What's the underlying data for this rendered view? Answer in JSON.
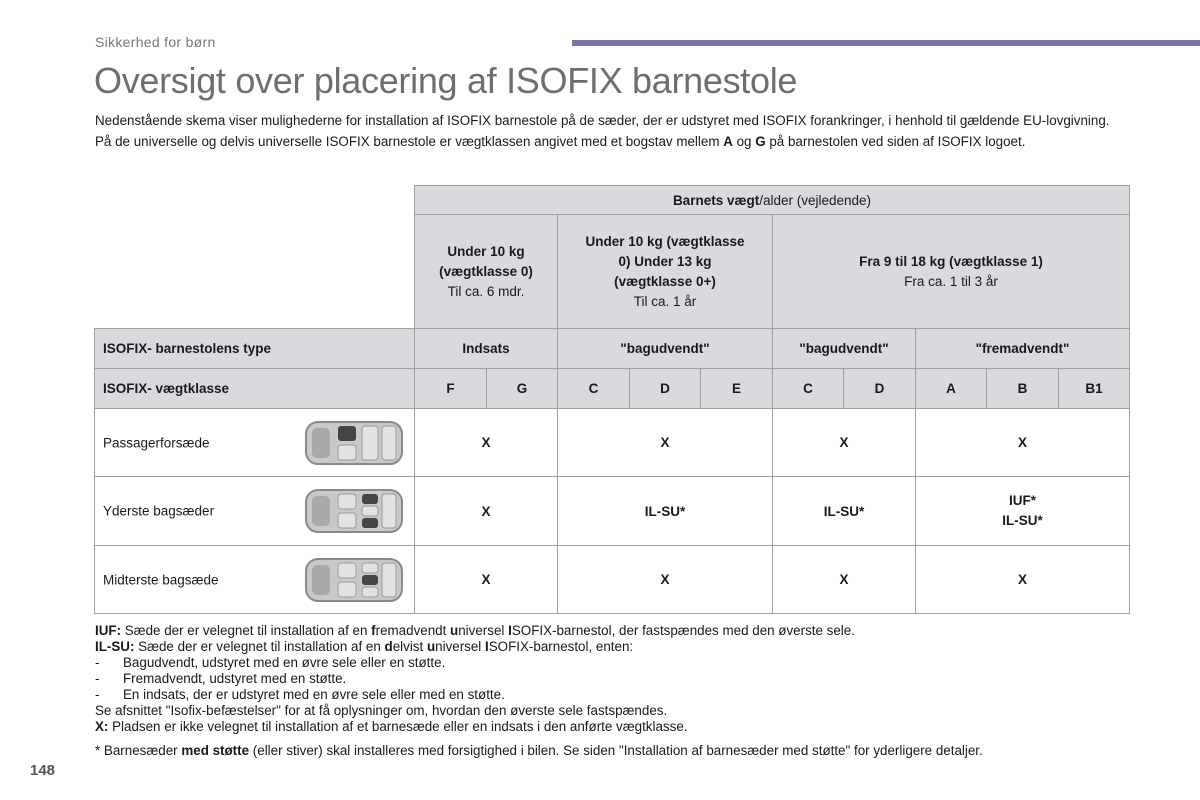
{
  "header": {
    "section": "Sikkerhed for børn",
    "title": "Oversigt over placering af ISOFIX barnestole",
    "accent_color": "#7c72a6"
  },
  "intro": {
    "line1": "Nedenstående skema viser mulighederne for installation af ISOFIX barnestole på de sæder, der er udstyret med ISOFIX forankringer, i henhold til gældende EU-lovgivning.",
    "line2_a": "På de universelle og delvis universelle ISOFIX barnestole er vægtklassen angivet med et bogstav mellem ",
    "line2_b": "A",
    "line2_c": " og ",
    "line2_d": "G",
    "line2_e": " på barnestolen ved siden af ISOFIX logoet."
  },
  "table": {
    "head_bold": "Barnets vægt",
    "head_rest": "/alder (vejledende)",
    "groups": [
      {
        "bold": "Under 10 kg (vægtklasse 0)",
        "sub": "Til ca. 6 mdr."
      },
      {
        "bold": "Under 10 kg (vægtklasse 0) Under 13 kg (vægtklasse 0+)",
        "sub": "Til ca. 1 år"
      },
      {
        "bold": "Fra 9 til 18 kg (vægtklasse 1)",
        "sub": "Fra ca. 1 til 3 år"
      }
    ],
    "type_label": "ISOFIX- barnestolens type",
    "types": [
      "Indsats",
      "\"bagudvendt\"",
      "\"bagudvendt\"",
      "\"fremadvendt\""
    ],
    "class_label": "ISOFIX- vægtklasse",
    "classes": [
      "F",
      "G",
      "C",
      "D",
      "E",
      "C",
      "D",
      "A",
      "B",
      "B1"
    ],
    "rows": [
      {
        "seat": "Passagerforsæde",
        "icon": "car-front-seat-icon",
        "values": [
          "X",
          "X",
          "X",
          "X"
        ]
      },
      {
        "seat": "Yderste bagsæder",
        "icon": "car-rear-outer-seats-icon",
        "values": [
          "X",
          "IL-SU*",
          "IL-SU*",
          "IUF*",
          "IL-SU*"
        ]
      },
      {
        "seat": "Midterste bagsæde",
        "icon": "car-rear-middle-seat-icon",
        "values": [
          "X",
          "X",
          "X",
          "X"
        ]
      }
    ]
  },
  "notes": {
    "iuf_key": "IUF:",
    "iuf_text": [
      " Sæde der er velegnet til installation af en ",
      "f",
      "remadvendt ",
      "u",
      "niversel ",
      "I",
      "SOFIX-barnestol, der fastspændes med den øverste sele."
    ],
    "ilsu_key": "IL-SU:",
    "ilsu_text": [
      " Sæde der er velegnet til installation af en ",
      "d",
      "elvist ",
      "u",
      "niversel ",
      "I",
      "SOFIX-barnestol, enten:"
    ],
    "dash": "-",
    "bullets": [
      "Bagudvendt, udstyret med en øvre sele eller en støtte.",
      "Fremadvendt, udstyret med en støtte.",
      "En indsats, der er udstyret med en øvre sele eller med en støtte."
    ],
    "see_section": "Se afsnittet \"Isofix-befæstelser\" for at få oplysninger om, hvordan den øverste sele fastspændes.",
    "x_key": "X:",
    "x_text": " Pladsen er ikke velegnet til installation af et barnesæde eller en indsats i den anførte vægtklasse.",
    "star_a": "* Barnesæder ",
    "star_b": "med støtte",
    "star_c": " (eller stiver) skal installeres med forsigtighed i bilen. Se siden \"Installation af barnesæder med støtte\" for yderligere detaljer."
  },
  "page_number": "148"
}
